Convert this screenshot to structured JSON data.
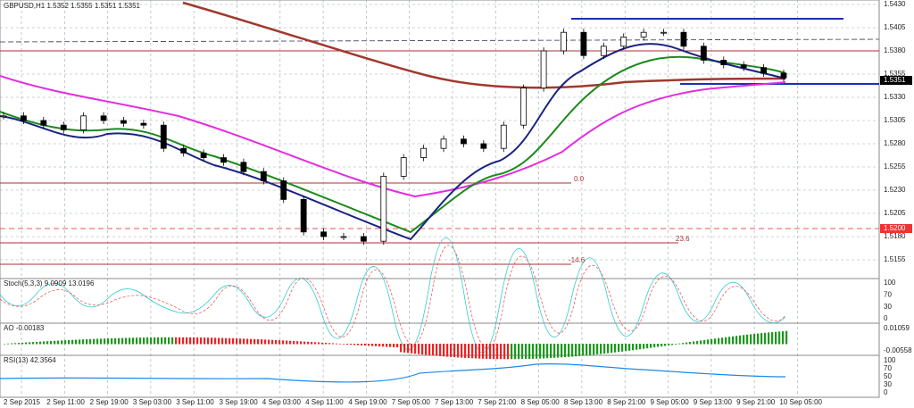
{
  "header": "GBPUSD,H1  1.5352 1.5355 1.5351 1.5351",
  "price_ticks": [
    "1.5430",
    "1.5405",
    "1.5380",
    "1.5355",
    "1.5330",
    "1.5305",
    "1.5280",
    "1.5255",
    "1.5230",
    "1.5205",
    "1.5180",
    "1.5155"
  ],
  "price_tag": "1.5351",
  "level_tag": "1.5200",
  "fib_labels": [
    "0.0",
    "23.6",
    "-14.6"
  ],
  "closes": [
    1.531,
    1.5305,
    1.53,
    1.5295,
    1.531,
    1.5305,
    1.5302,
    1.53,
    1.5275,
    1.527,
    1.5265,
    1.526,
    1.525,
    1.524,
    1.522,
    1.5185,
    1.518,
    1.518,
    1.5175,
    1.5245,
    1.5265,
    1.5275,
    1.5285,
    1.528,
    1.5275,
    1.53,
    1.534,
    1.538,
    1.54,
    1.5375,
    1.5385,
    1.5395,
    1.54,
    1.54,
    1.5385,
    1.537,
    1.5365,
    1.5362,
    1.5356,
    1.5351
  ],
  "stoch": {
    "label": "Stoch(5,3,3) 9.0909 13.0196",
    "ticks": [
      "100",
      "70",
      "30",
      "0"
    ]
  },
  "ao": {
    "label": "AO -0.00183",
    "ticks": [
      "0.01059",
      "-0.00558"
    ]
  },
  "rsi": {
    "label": "RSI(13) 42.3564",
    "ticks": [
      "100",
      "70",
      "50",
      "30",
      "0"
    ]
  },
  "time_labels": [
    "2 Sep 2015",
    "2 Sep 11:00",
    "2 Sep 19:00",
    "3 Sep 03:00",
    "3 Sep 11:00",
    "3 Sep 19:00",
    "4 Sep 03:00",
    "4 Sep 11:00",
    "4 Sep 19:00",
    "7 Sep 05:00",
    "7 Sep 13:00",
    "7 Sep 21:00",
    "8 Sep 05:00",
    "8 Sep 13:00",
    "8 Sep 21:00",
    "9 Sep 05:00",
    "9 Sep 13:00",
    "9 Sep 21:00",
    "10 Sep 05:00"
  ]
}
